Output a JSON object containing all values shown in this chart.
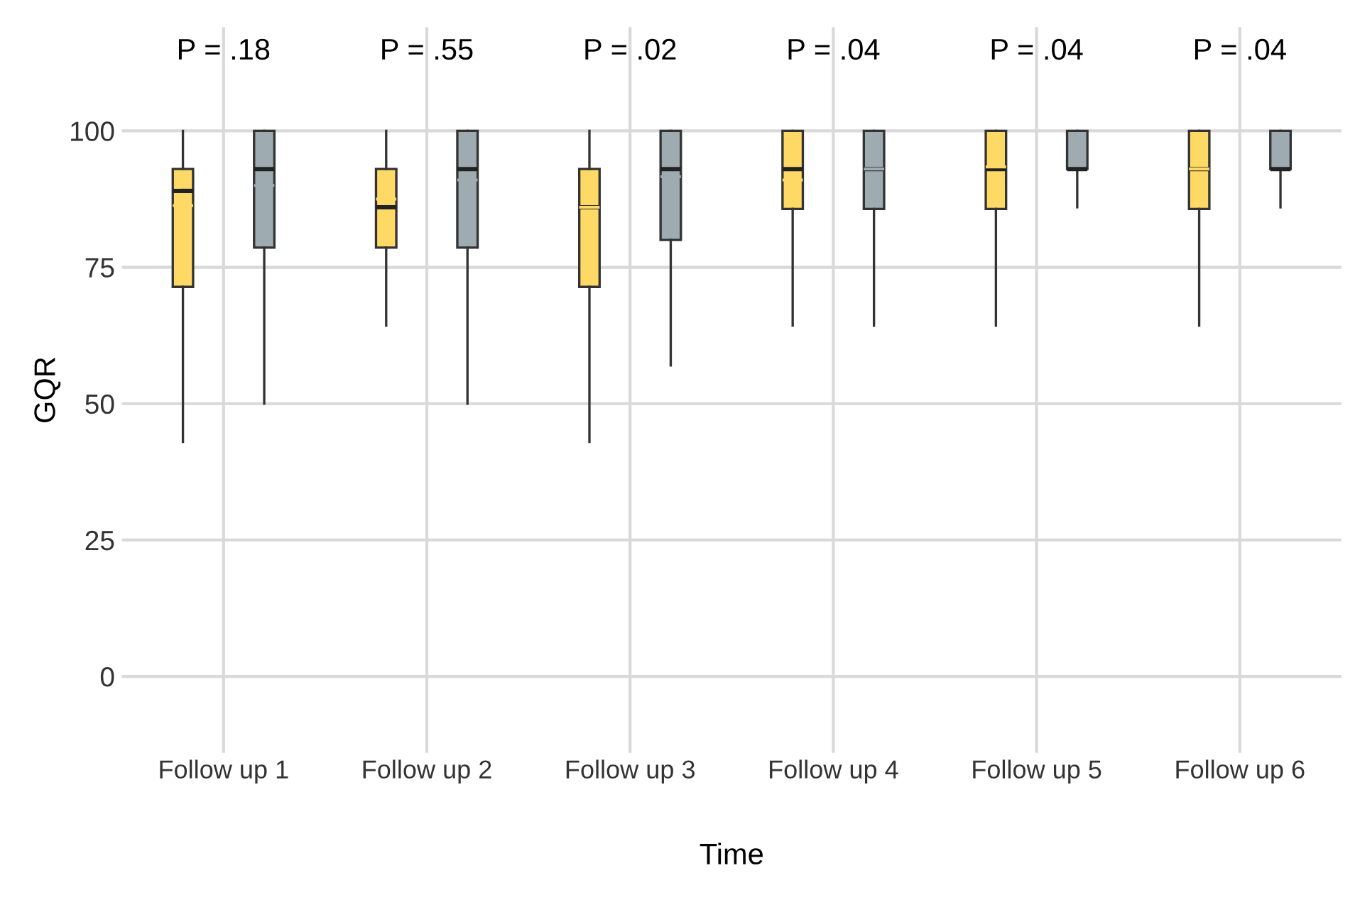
{
  "chart_data": {
    "type": "box",
    "xlabel": "Time",
    "ylabel": "GQR",
    "categories": [
      "Follow up 1",
      "Follow up 2",
      "Follow up 3",
      "Follow up 4",
      "Follow up 5",
      "Follow up 6"
    ],
    "ylim": [
      -14,
      119
    ],
    "yticks": [
      0,
      25,
      50,
      75,
      100
    ],
    "grid": true,
    "legend": false,
    "series": [
      {
        "color": "#ffd966",
        "boxes": [
          {
            "low": 43,
            "q1": 71.4,
            "median": 89,
            "q3": 93,
            "high": 100,
            "mean": 86.3
          },
          {
            "low": 64.3,
            "q1": 78.6,
            "median": 86,
            "q3": 93,
            "high": 100,
            "mean": 87.5
          },
          {
            "low": 43,
            "q1": 71.4,
            "median": 86,
            "q3": 93,
            "high": 100,
            "mean": 86
          },
          {
            "low": 64.3,
            "q1": 85.7,
            "median": 93,
            "q3": 100,
            "high": 100,
            "mean": 91
          },
          {
            "low": 64.3,
            "q1": 85.7,
            "median": 93,
            "q3": 100,
            "high": 100,
            "mean": 93.4
          },
          {
            "low": 64.3,
            "q1": 85.7,
            "median": 93,
            "q3": 100,
            "high": 100,
            "mean": 93
          }
        ]
      },
      {
        "color": "#9eabb0",
        "boxes": [
          {
            "low": 50,
            "q1": 78.6,
            "median": 93,
            "q3": 100,
            "high": 100,
            "mean": 90
          },
          {
            "low": 50,
            "q1": 78.6,
            "median": 93,
            "q3": 100,
            "high": 100,
            "mean": 91
          },
          {
            "low": 57,
            "q1": 80,
            "median": 93,
            "q3": 100,
            "high": 100,
            "mean": 91.6
          },
          {
            "low": 64.3,
            "q1": 85.7,
            "median": 93,
            "q3": 100,
            "high": 100,
            "mean": 93
          },
          {
            "low": 86,
            "q1": 93,
            "median": 93,
            "q3": 100,
            "high": 100
          },
          {
            "low": 86,
            "q1": 93,
            "median": 93,
            "q3": 100,
            "high": 100
          }
        ]
      }
    ],
    "annotations": [
      "P = .18",
      "P = .55",
      "P = .02",
      "P = .04",
      "P = .04",
      "P = .04"
    ]
  }
}
